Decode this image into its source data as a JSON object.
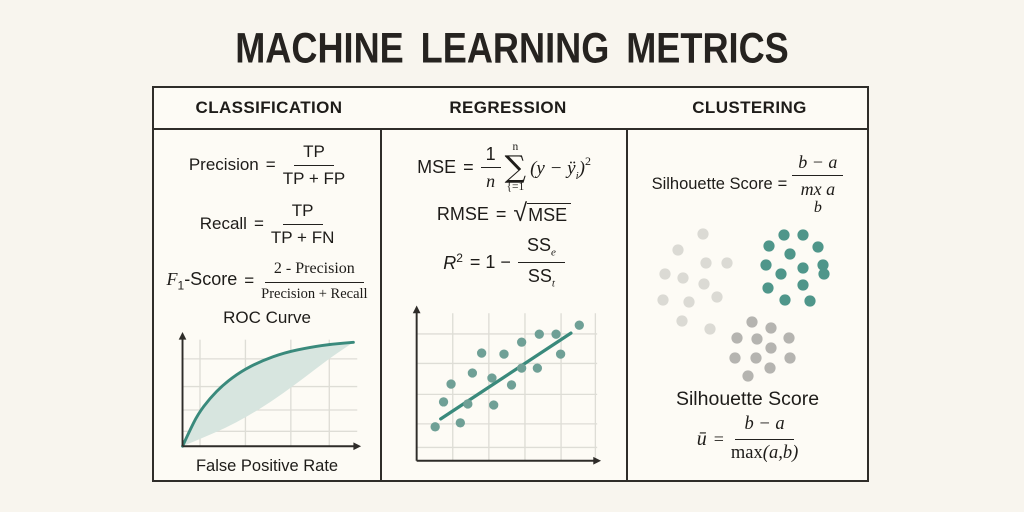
{
  "title": "MACHINE LEARNING METRICS",
  "colors": {
    "background": "#f8f5ee",
    "panel": "#fdfbf5",
    "border": "#2f2d29",
    "text": "#1e1c19",
    "axis": "#2e2c29",
    "grid": "#deddd6",
    "teal_line": "#3a8a7c",
    "teal_fill": "#d7e5df",
    "scatter_dot": "#6fa096",
    "cluster_teal": "#4f968a",
    "cluster_gray_light": "#dbdad4",
    "cluster_gray_mid": "#b5b4b0"
  },
  "table": {
    "headers": [
      "CLASSIFICATION",
      "REGRESSION",
      "CLUSTERING"
    ]
  },
  "classification": {
    "precision": {
      "lhs": "Precision",
      "eq": "=",
      "num": "TP",
      "den": "TP + FP"
    },
    "recall": {
      "lhs": "Recall",
      "eq": "=",
      "num": "TP",
      "den": "TP + FN"
    },
    "f1": {
      "lhs_main": "F",
      "lhs_sub": "1",
      "lhs_rest": "-Score",
      "eq": "=",
      "num": "2 - Precision",
      "den": "Precision + Recall"
    },
    "chart_title": "ROC Curve",
    "xlabel": "False Positive Rate"
  },
  "regression": {
    "mse": {
      "lhs": "MSE",
      "eq": "=",
      "frac_num": "1",
      "frac_den": "n",
      "sum_top": "n",
      "sigma": "∑",
      "sum_bot": "{=1",
      "body_open": "(y − ÿ",
      "body_sub": "i",
      "body_close": ")",
      "sup": "2"
    },
    "rmse": {
      "lhs": "RMSE",
      "eq": "=",
      "radical": "√",
      "body": "MSE"
    },
    "r2": {
      "lhs_main": "R",
      "lhs_sup": "2",
      "eq": "= 1 −",
      "num_main": "SS",
      "num_sub": "e",
      "den_main": "SS",
      "den_sub": "t"
    }
  },
  "clustering": {
    "top": {
      "lhs": "Silhouette Score",
      "eq": "=",
      "num": "b − a",
      "den": "mx a",
      "den_below": "b"
    },
    "heading": "Silhouette Score",
    "bottom": {
      "lhs": "ū",
      "eq": "=",
      "num": "b − a",
      "den_fn": "max",
      "den_args": "(a,b)"
    }
  },
  "chart_data": [
    {
      "type": "line",
      "name": "roc",
      "title": "ROC Curve",
      "xlabel": "False Positive Rate",
      "grid_x": [
        0.1,
        0.36,
        0.62,
        0.84
      ],
      "grid_y": [
        0.14,
        0.34,
        0.56,
        0.82
      ],
      "upper_curve": [
        [
          0,
          0
        ],
        [
          0.04,
          0.14
        ],
        [
          0.09,
          0.3
        ],
        [
          0.16,
          0.45
        ],
        [
          0.24,
          0.58
        ],
        [
          0.34,
          0.7
        ],
        [
          0.46,
          0.8
        ],
        [
          0.6,
          0.88
        ],
        [
          0.75,
          0.93
        ],
        [
          0.88,
          0.96
        ],
        [
          1.0,
          0.975
        ]
      ],
      "lower_curve": [
        [
          0,
          0
        ],
        [
          0.12,
          0.08
        ],
        [
          0.25,
          0.17
        ],
        [
          0.38,
          0.28
        ],
        [
          0.52,
          0.42
        ],
        [
          0.66,
          0.58
        ],
        [
          0.8,
          0.75
        ],
        [
          0.9,
          0.87
        ],
        [
          1.0,
          0.975
        ]
      ]
    },
    {
      "type": "scatter",
      "name": "regression-fit",
      "grid_x": [
        0.2,
        0.4,
        0.6,
        0.8,
        0.99
      ],
      "grid_y": [
        0.09,
        0.25,
        0.45,
        0.66,
        0.86
      ],
      "points": [
        [
          0.106,
          0.23
        ],
        [
          0.154,
          0.399
        ],
        [
          0.197,
          0.52
        ],
        [
          0.25,
          0.257
        ],
        [
          0.293,
          0.385
        ],
        [
          0.319,
          0.595
        ],
        [
          0.372,
          0.73
        ],
        [
          0.431,
          0.561
        ],
        [
          0.441,
          0.378
        ],
        [
          0.5,
          0.723
        ],
        [
          0.543,
          0.514
        ],
        [
          0.601,
          0.804
        ],
        [
          0.601,
          0.628
        ],
        [
          0.691,
          0.628
        ],
        [
          0.702,
          0.858
        ],
        [
          0.798,
          0.858
        ],
        [
          0.824,
          0.723
        ],
        [
          0.931,
          0.919
        ]
      ],
      "trend": [
        [
          0.138,
          0.284
        ],
        [
          0.883,
          0.865
        ]
      ]
    },
    {
      "type": "clusters",
      "name": "silhouette-clusters",
      "dot_radius": 5.6,
      "clusters": [
        {
          "color_key": "cluster_gray_light",
          "points": [
            [
              75,
              10
            ],
            [
              50,
              26
            ],
            [
              78,
              39
            ],
            [
              99,
              39
            ],
            [
              37,
              50
            ],
            [
              55,
              54
            ],
            [
              76,
              60
            ],
            [
              35,
              76
            ],
            [
              61,
              78
            ],
            [
              89,
              73
            ],
            [
              54,
              97
            ],
            [
              82,
              105
            ]
          ]
        },
        {
          "color_key": "cluster_teal",
          "points": [
            [
              156,
              11
            ],
            [
              175,
              11
            ],
            [
              141,
              22
            ],
            [
              190,
              23
            ],
            [
              162,
              30
            ],
            [
              138,
              41
            ],
            [
              195,
              41
            ],
            [
              175,
              44
            ],
            [
              153,
              50
            ],
            [
              196,
              50
            ],
            [
              140,
              64
            ],
            [
              175,
              61
            ],
            [
              157,
              76
            ],
            [
              182,
              77
            ]
          ]
        },
        {
          "color_key": "cluster_gray_mid",
          "points": [
            [
              124,
              98
            ],
            [
              143,
              104
            ],
            [
              109,
              114
            ],
            [
              129,
              115
            ],
            [
              161,
              114
            ],
            [
              143,
              124
            ],
            [
              107,
              134
            ],
            [
              128,
              134
            ],
            [
              162,
              134
            ],
            [
              142,
              144
            ],
            [
              120,
              152
            ]
          ]
        }
      ]
    }
  ]
}
